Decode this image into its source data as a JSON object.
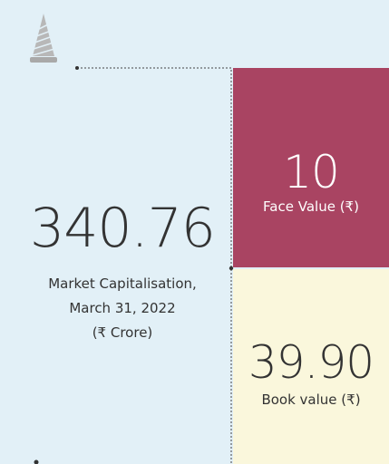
{
  "market_cap": {
    "value": "340.76",
    "label_lines": [
      "Market Capitalisation,",
      "March 31, 2022",
      "(₹ Crore)"
    ]
  },
  "face_value": {
    "value": "10",
    "label": "Face Value (₹)"
  },
  "book_value": {
    "value": "39.90",
    "label": "Book value (₹)"
  }
}
